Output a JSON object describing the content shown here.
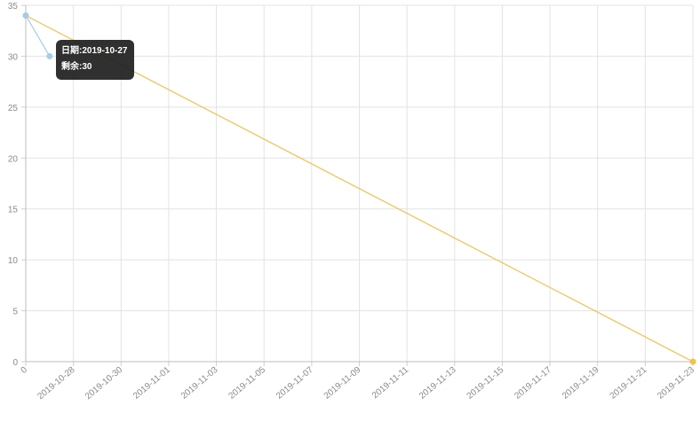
{
  "chart_data": {
    "type": "line",
    "x_labels": [
      "0",
      "2019-10-28",
      "2019-10-30",
      "2019-11-01",
      "2019-11-03",
      "2019-11-05",
      "2019-11-07",
      "2019-11-09",
      "2019-11-11",
      "2019-11-13",
      "2019-11-15",
      "2019-11-17",
      "2019-11-19",
      "2019-11-21",
      "2019-11-23"
    ],
    "ylim": [
      0,
      35
    ],
    "y_ticks": [
      "0",
      "5",
      "10",
      "15",
      "20",
      "25",
      "30",
      "35"
    ],
    "grid": true,
    "series": [
      {
        "color": "#f2c14e",
        "points": [
          {
            "x": "2019-10-26",
            "y": 34
          },
          {
            "x": "2019-11-23",
            "y": 0
          }
        ]
      },
      {
        "color": "#a6cde8",
        "points": [
          {
            "x": "2019-10-26",
            "y": 34
          },
          {
            "x": "2019-10-27",
            "y": 30
          }
        ]
      }
    ],
    "tooltip": {
      "date_label": "日期",
      "date_value": "2019-10-27",
      "remaining_label": "剩余",
      "remaining_value": "30"
    }
  }
}
